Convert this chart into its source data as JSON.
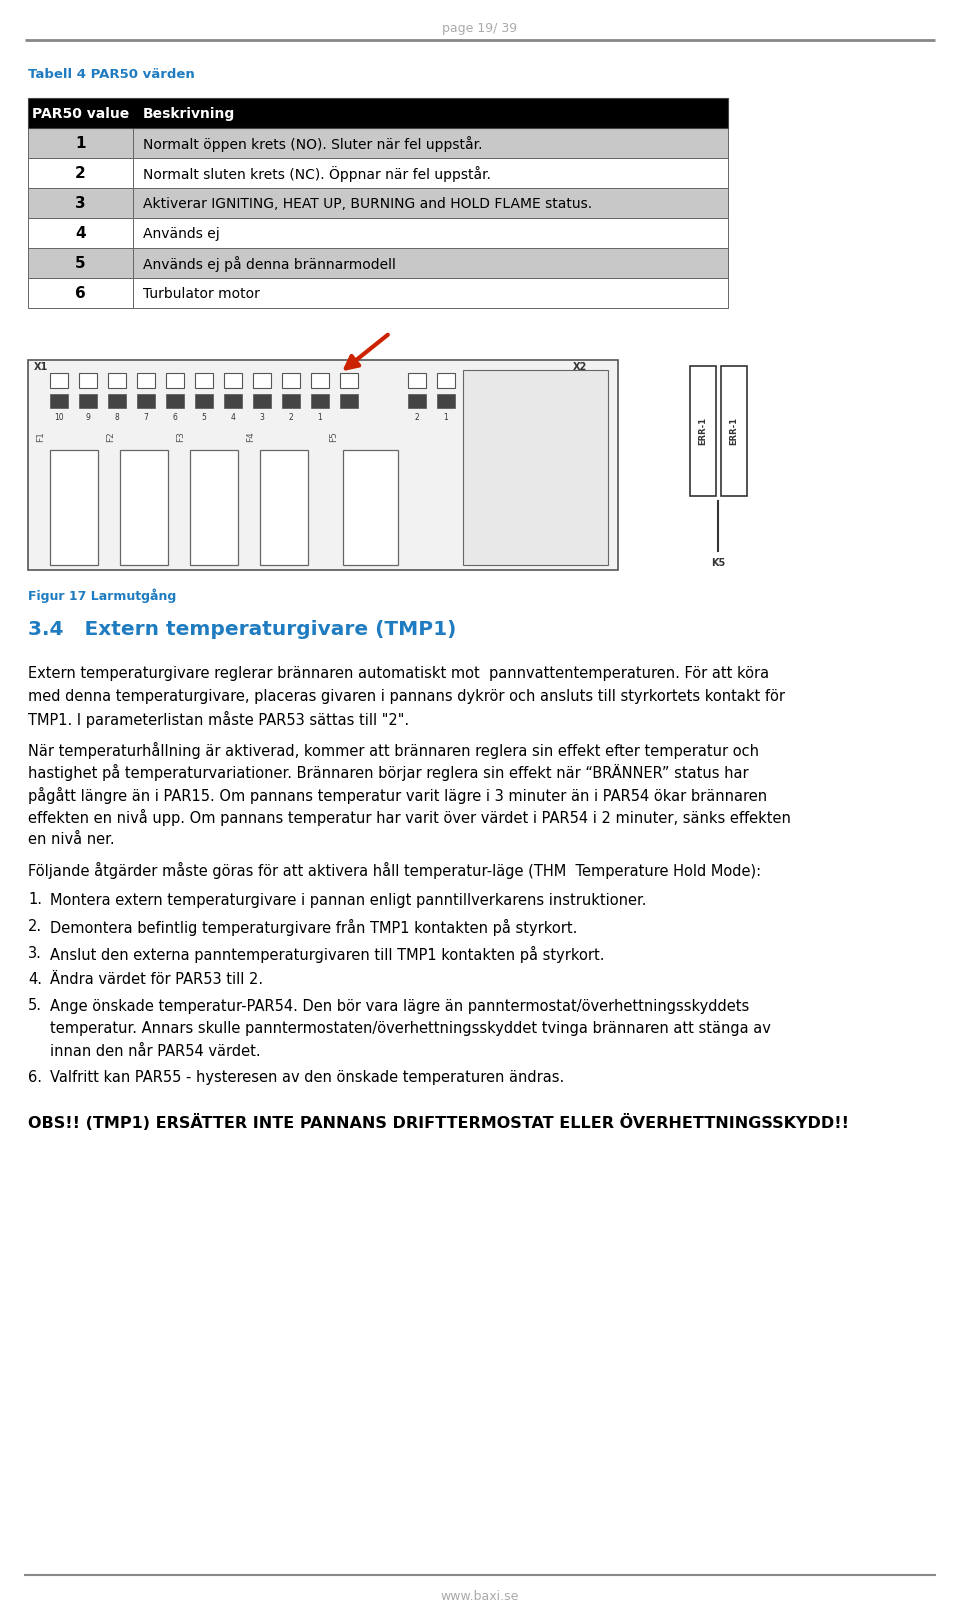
{
  "page_header": "page 19/ 39",
  "table_title": "Tabell 4 PAR50 värden",
  "table_title_color": "#1F7CC1",
  "table_header": [
    "PAR50 value",
    "Beskrivning"
  ],
  "table_rows": [
    [
      "1",
      "Normalt öppen krets (NO). Sluter när fel uppstår."
    ],
    [
      "2",
      "Normalt sluten krets (NC). Öppnar när fel uppstår."
    ],
    [
      "3",
      "Aktiverar IGNITING, HEAT UP, BURNING and HOLD FLAME status."
    ],
    [
      "4",
      "Används ej"
    ],
    [
      "5",
      "Används ej på denna brännarmodell"
    ],
    [
      "6",
      "Turbulator motor"
    ]
  ],
  "table_header_bg": "#000000",
  "table_header_fg": "#ffffff",
  "table_row_alt_bg": "#c8c8c8",
  "table_row_white_bg": "#ffffff",
  "figure_caption": "Figur 17 Larmutgång",
  "figure_caption_color": "#1F7CC1",
  "section_title": "3.4   Extern temperaturgivare (TMP1)",
  "section_title_color": "#1F7CC1",
  "para1_lines": [
    "Extern temperaturgivare reglerar brännaren automatiskt mot  pannvattentemperaturen. För att köra",
    "med denna temperaturgivare, placeras givaren i pannans dykrör och ansluts till styrkortets kontakt för",
    "TMP1. I parameterlistan måste PAR53 sättas till \"2\"."
  ],
  "para2_lines": [
    "När temperaturhållning är aktiverad, kommer att brännaren reglera sin effekt efter temperatur och",
    "hastighet på temperaturvariationer. Brännaren börjar reglera sin effekt när “BRÄNNER” status har",
    "pågått längre än i PAR15. Om pannans temperatur varit lägre i 3 minuter än i PAR54 ökar brännaren",
    "effekten en nivå upp. Om pannans temperatur har varit över värdet i PAR54 i 2 minuter, sänks effekten",
    "en nivå ner."
  ],
  "para3_lines": [
    "Följande åtgärder måste göras för att aktivera håll temperatur-läge (THM  Temperature Hold Mode):"
  ],
  "numbered_items": [
    [
      "Montera extern temperaturgivare i pannan enligt panntillverkarens instruktioner."
    ],
    [
      "Demontera befintlig temperaturgivare från TMP1 kontakten på styrkort."
    ],
    [
      "Anslut den externa panntemperaturgivaren till TMP1 kontakten på styrkort."
    ],
    [
      "Ändra värdet för PAR53 till 2."
    ],
    [
      "Ange önskade temperatur-PAR54. Den bör vara lägre än panntermostat/överhettningsskyddets",
      "temperatur. Annars skulle panntermostaten/överhettningsskyddet tvinga brännaren att stänga av",
      "innan den når PAR54 värdet."
    ],
    [
      "Valfritt kan PAR55 - hysteresen av den önskade temperaturen ändras."
    ]
  ],
  "obs_text": "OBS!! (TMP1) ERSÄTTER INTE PANNANS DRIFTTERMOSTAT ELLER ÖVERHETTNINGSSKYDD!!",
  "footer_text": "www.baxi.se",
  "bg_color": "#ffffff",
  "text_color": "#000000",
  "gray_color": "#888888"
}
